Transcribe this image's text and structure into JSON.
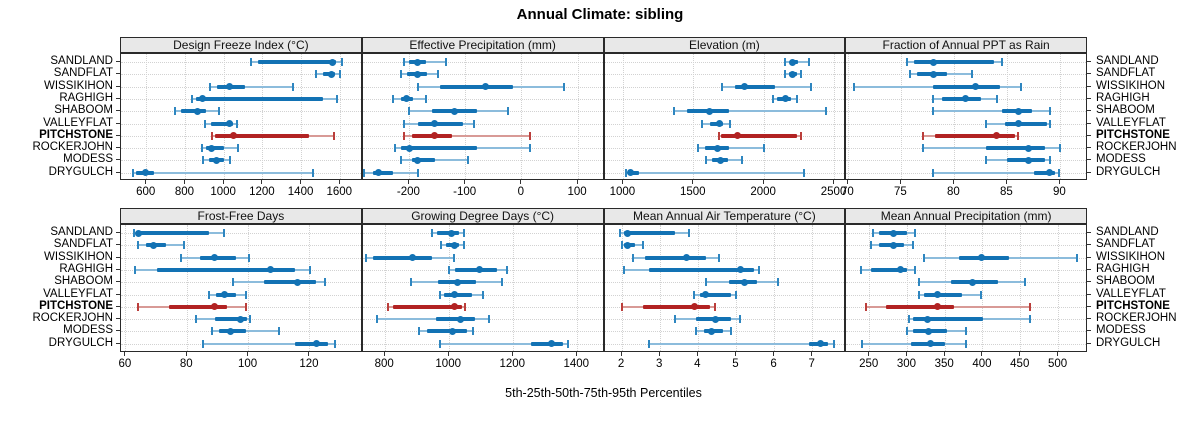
{
  "colors": {
    "series": "#1272b4",
    "series_light": "#8cbcdc",
    "series_cap": "#2e86c0",
    "highlight": "#b22222",
    "highlight_light": "#d89a96",
    "highlight_cap": "#bb3e3b",
    "strip_bg": "#e8e8e8",
    "panel_border": "#2a2a2a",
    "grid": "#d2d2d2"
  },
  "sites": [
    {
      "name": "SANDLAND",
      "highlight": false
    },
    {
      "name": "SANDFLAT",
      "highlight": false
    },
    {
      "name": "WISSIKIHON",
      "highlight": false
    },
    {
      "name": "RAGHIGH",
      "highlight": false
    },
    {
      "name": "SHABOOM",
      "highlight": false
    },
    {
      "name": "VALLEYFLAT",
      "highlight": false
    },
    {
      "name": "PITCHSTONE",
      "highlight": true
    },
    {
      "name": "ROCKERJOHN",
      "highlight": false
    },
    {
      "name": "MODESS",
      "highlight": false
    },
    {
      "name": "DRYGULCH",
      "highlight": false
    }
  ],
  "chart_data": {
    "type": "dotplot",
    "title": "Annual Climate: sibling",
    "xlabel": "5th-25th-50th-75th-95th Percentiles",
    "percentiles": [
      5,
      25,
      50,
      75,
      95
    ],
    "legend_position": "none",
    "grid": "dotted",
    "panels": [
      {
        "title": "Design Freeze Index (°C)",
        "row": 0,
        "col": 0,
        "xlim": [
          467,
          1716
        ],
        "ticks": [
          600,
          800,
          1000,
          1200,
          1400,
          1600
        ],
        "values": {
          "SANDLAND": [
            1140,
            1175,
            1560,
            1580,
            1610
          ],
          "SANDFLAT": [
            1475,
            1510,
            1555,
            1575,
            1600
          ],
          "WISSIKIHON": [
            925,
            965,
            1030,
            1110,
            1355
          ],
          "RAGHIGH": [
            835,
            855,
            890,
            1510,
            1585
          ],
          "SHABOOM": [
            745,
            775,
            860,
            905,
            975
          ],
          "VALLEYFLAT": [
            900,
            930,
            1025,
            1045,
            1065
          ],
          "PITCHSTONE": [
            935,
            955,
            1050,
            1440,
            1570
          ],
          "ROCKERJOHN": [
            885,
            905,
            935,
            1000,
            1070
          ],
          "MODESS": [
            890,
            920,
            960,
            1000,
            1030
          ],
          "DRYGULCH": [
            530,
            545,
            595,
            640,
            1460
          ]
        }
      },
      {
        "title": "Effective Precipitation (mm)",
        "row": 0,
        "col": 1,
        "xlim": [
          -283,
          147
        ],
        "ticks": [
          -200,
          -100,
          0,
          100
        ],
        "values": {
          "SANDLAND": [
            -210,
            -200,
            -185,
            -170,
            -135
          ],
          "SANDFLAT": [
            -215,
            -205,
            -185,
            -168,
            -150
          ],
          "WISSIKIHON": [
            -185,
            -145,
            -65,
            -15,
            75
          ],
          "RAGHIGH": [
            -230,
            -215,
            -205,
            -193,
            -170
          ],
          "SHABOOM": [
            -200,
            -160,
            -120,
            -80,
            -25
          ],
          "VALLEYFLAT": [
            -210,
            -185,
            -155,
            -105,
            -85
          ],
          "PITCHSTONE": [
            -210,
            -195,
            -155,
            -125,
            15
          ],
          "ROCKERJOHN": [
            -225,
            -215,
            -200,
            -80,
            15
          ],
          "MODESS": [
            -215,
            -195,
            -185,
            -155,
            -95
          ],
          "DRYGULCH": [
            -280,
            -265,
            -255,
            -230,
            -185
          ]
        }
      },
      {
        "title": "Elevation (m)",
        "row": 0,
        "col": 2,
        "xlim": [
          866,
          2583
        ],
        "ticks": [
          1000,
          1500,
          2000,
          2500
        ],
        "values": {
          "SANDLAND": [
            2150,
            2180,
            2200,
            2240,
            2320
          ],
          "SANDFLAT": [
            2150,
            2175,
            2200,
            2230,
            2260
          ],
          "WISSIKIHON": [
            1700,
            1790,
            1860,
            2080,
            2330
          ],
          "RAGHIGH": [
            2060,
            2090,
            2150,
            2190,
            2230
          ],
          "SHABOOM": [
            1360,
            1450,
            1610,
            1750,
            2440
          ],
          "VALLEYFLAT": [
            1560,
            1615,
            1680,
            1705,
            1760
          ],
          "PITCHSTONE": [
            1680,
            1695,
            1810,
            2230,
            2260
          ],
          "ROCKERJOHN": [
            1530,
            1580,
            1670,
            1750,
            2000
          ],
          "MODESS": [
            1590,
            1630,
            1690,
            1740,
            1840
          ],
          "DRYGULCH": [
            1020,
            1030,
            1050,
            1110,
            2280
          ]
        }
      },
      {
        "title": "Fraction of Annual PPT as Rain",
        "row": 0,
        "col": 3,
        "xlim": [
          69.8,
          92.6
        ],
        "ticks": [
          70,
          75,
          80,
          85,
          90
        ],
        "values": {
          "SANDLAND": [
            75.5,
            76.2,
            78,
            83.7,
            84.5
          ],
          "SANDFLAT": [
            75.8,
            76.5,
            78,
            79.3,
            81.7
          ],
          "WISSIKIHON": [
            70.5,
            78,
            82,
            84.3,
            86.3
          ],
          "RAGHIGH": [
            78,
            78.8,
            81,
            82.5,
            84
          ],
          "SHABOOM": [
            78,
            84.5,
            86,
            87.3,
            89
          ],
          "VALLEYFLAT": [
            83,
            84.8,
            86,
            88.7,
            89
          ],
          "PITCHSTONE": [
            77,
            78.2,
            84,
            85.7,
            86
          ],
          "ROCKERJOHN": [
            77,
            83,
            87,
            88.5,
            90
          ],
          "MODESS": [
            83,
            85,
            87,
            88.5,
            89
          ],
          "DRYGULCH": [
            78,
            87.5,
            89,
            89.5,
            89.9
          ]
        }
      },
      {
        "title": "Frost-Free Days",
        "row": 1,
        "col": 0,
        "xlim": [
          58.4,
          137.2
        ],
        "ticks": [
          60,
          80,
          100,
          120
        ],
        "values": {
          "SANDLAND": [
            62.5,
            63.5,
            64,
            87,
            92
          ],
          "SANDFLAT": [
            64,
            66.5,
            69,
            73,
            79
          ],
          "WISSIKIHON": [
            78,
            84,
            89,
            96,
            100
          ],
          "RAGHIGH": [
            63,
            70,
            107,
            115,
            120
          ],
          "SHABOOM": [
            95,
            105,
            116,
            122,
            125
          ],
          "VALLEYFLAT": [
            87,
            89.5,
            92,
            96,
            99
          ],
          "PITCHSTONE": [
            64,
            74,
            89,
            93,
            99
          ],
          "ROCKERJOHN": [
            83,
            89,
            97.5,
            99.5,
            100.5
          ],
          "MODESS": [
            88,
            90.5,
            94,
            99,
            110
          ],
          "DRYGULCH": [
            85,
            115,
            122,
            126,
            128
          ]
        }
      },
      {
        "title": "Growing Degree Days (°C)",
        "row": 1,
        "col": 1,
        "xlim": [
          730,
          1485
        ],
        "ticks": [
          800,
          1000,
          1200,
          1400
        ],
        "values": {
          "SANDLAND": [
            945,
            962,
            1008,
            1030,
            1045
          ],
          "SANDFLAT": [
            975,
            990,
            1015,
            1032,
            1045
          ],
          "WISSIKIHON": [
            740,
            762,
            885,
            945,
            1015
          ],
          "RAGHIGH": [
            1000,
            1018,
            1095,
            1150,
            1180
          ],
          "SHABOOM": [
            880,
            965,
            1025,
            1085,
            1165
          ],
          "VALLEYFLAT": [
            970,
            985,
            1015,
            1070,
            1105
          ],
          "PITCHSTONE": [
            810,
            825,
            1015,
            1040,
            1050
          ],
          "ROCKERJOHN": [
            775,
            960,
            1035,
            1080,
            1125
          ],
          "MODESS": [
            905,
            930,
            1010,
            1055,
            1075
          ],
          "DRYGULCH": [
            970,
            1255,
            1320,
            1355,
            1370
          ]
        }
      },
      {
        "title": "Mean Annual Air Temperature (°C)",
        "row": 1,
        "col": 2,
        "xlim": [
          1.54,
          7.88
        ],
        "ticks": [
          2,
          3,
          4,
          5,
          6,
          7
        ],
        "values": {
          "SANDLAND": [
            1.95,
            2.05,
            2.15,
            3.4,
            3.75
          ],
          "SANDFLAT": [
            2.0,
            2.05,
            2.15,
            2.35,
            2.55
          ],
          "WISSIKIHON": [
            2.3,
            2.6,
            3.7,
            4.2,
            4.55
          ],
          "RAGHIGH": [
            2.05,
            2.7,
            5.1,
            5.45,
            5.6
          ],
          "SHABOOM": [
            4.2,
            4.8,
            5.2,
            5.55,
            6.1
          ],
          "VALLEYFLAT": [
            3.9,
            4.05,
            4.2,
            4.85,
            5.0
          ],
          "PITCHSTONE": [
            2.0,
            2.55,
            3.9,
            4.3,
            4.45
          ],
          "ROCKERJOHN": [
            3.4,
            3.95,
            4.45,
            4.85,
            5.1
          ],
          "MODESS": [
            3.95,
            4.15,
            4.35,
            4.65,
            4.85
          ],
          "DRYGULCH": [
            2.7,
            6.9,
            7.2,
            7.4,
            7.55
          ]
        }
      },
      {
        "title": "Mean Annual Precipitation (mm)",
        "row": 1,
        "col": 3,
        "xlim": [
          219,
          539
        ],
        "ticks": [
          250,
          300,
          350,
          400,
          450,
          500
        ],
        "values": {
          "SANDLAND": [
            255,
            262,
            282,
            300,
            310
          ],
          "SANDFLAT": [
            252,
            262,
            282,
            295,
            308
          ],
          "WISSIKIHON": [
            322,
            368,
            398,
            435,
            525
          ],
          "RAGHIGH": [
            238,
            252,
            291,
            300,
            310
          ],
          "SHABOOM": [
            315,
            358,
            386,
            420,
            455
          ],
          "VALLEYFLAT": [
            315,
            322,
            340,
            372,
            397
          ],
          "PITCHSTONE": [
            245,
            272,
            340,
            362,
            462
          ],
          "ROCKERJOHN": [
            302,
            308,
            326,
            400,
            462
          ],
          "MODESS": [
            300,
            308,
            328,
            352,
            378
          ],
          "DRYGULCH": [
            240,
            305,
            330,
            350,
            377
          ]
        }
      }
    ]
  }
}
